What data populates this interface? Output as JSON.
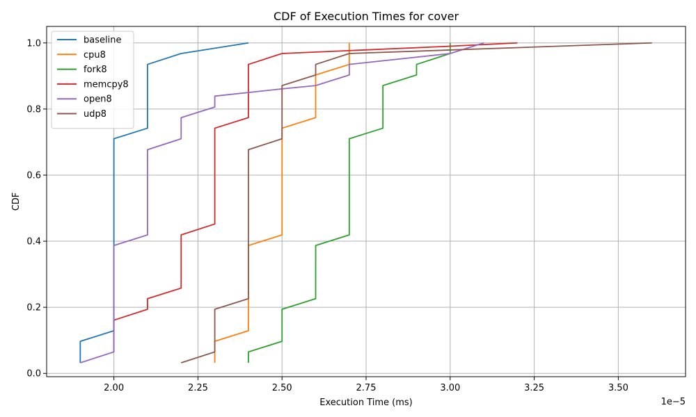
{
  "chart_data": {
    "type": "line",
    "title": "CDF of Execution Times for cover",
    "xlabel": "Execution Time (ms)",
    "ylabel": "CDF",
    "x_scale_label": "1e−5",
    "x_scale_factor": 1e-05,
    "xlim": [
      1.8e-05,
      3.7e-05
    ],
    "ylim": [
      -0.01,
      1.05
    ],
    "x_ticks": [
      2e-05,
      2.25e-05,
      2.5e-05,
      2.75e-05,
      3e-05,
      3.25e-05,
      3.5e-05
    ],
    "x_tick_labels": [
      "2.00",
      "2.25",
      "2.50",
      "2.75",
      "3.00",
      "3.25",
      "3.50"
    ],
    "y_ticks": [
      0.0,
      0.2,
      0.4,
      0.6,
      0.8,
      1.0
    ],
    "y_tick_labels": [
      "0.0",
      "0.2",
      "0.4",
      "0.6",
      "0.8",
      "1.0"
    ],
    "grid": true,
    "legend_position": "top-left",
    "series": [
      {
        "name": "baseline",
        "color": "#1f77b4",
        "x": [
          1.9e-05,
          1.9e-05,
          2e-05,
          2e-05,
          2.1e-05,
          2.1e-05,
          2.2e-05,
          2.4e-05
        ],
        "y": [
          0.032,
          0.097,
          0.129,
          0.71,
          0.742,
          0.935,
          0.968,
          1.0
        ]
      },
      {
        "name": "cpu8",
        "color": "#ff7f0e",
        "x": [
          2.3e-05,
          2.3e-05,
          2.4e-05,
          2.4e-05,
          2.5e-05,
          2.5e-05,
          2.6e-05,
          2.6e-05,
          2.7e-05,
          2.7e-05
        ],
        "y": [
          0.032,
          0.097,
          0.129,
          0.387,
          0.419,
          0.742,
          0.774,
          0.903,
          0.935,
          1.0
        ]
      },
      {
        "name": "fork8",
        "color": "#2ca02c",
        "x": [
          2.4e-05,
          2.4e-05,
          2.5e-05,
          2.5e-05,
          2.6e-05,
          2.6e-05,
          2.7e-05,
          2.7e-05,
          2.8e-05,
          2.8e-05,
          2.9e-05,
          2.9e-05,
          3e-05,
          3e-05
        ],
        "y": [
          0.032,
          0.065,
          0.097,
          0.194,
          0.226,
          0.387,
          0.419,
          0.71,
          0.742,
          0.871,
          0.903,
          0.935,
          0.968,
          1.0
        ]
      },
      {
        "name": "memcpy8",
        "color": "#d62728",
        "x": [
          2e-05,
          2e-05,
          2.1e-05,
          2.1e-05,
          2.2e-05,
          2.2e-05,
          2.3e-05,
          2.3e-05,
          2.4e-05,
          2.4e-05,
          2.5e-05,
          3e-05,
          3.2e-05
        ],
        "y": [
          0.065,
          0.161,
          0.194,
          0.226,
          0.258,
          0.419,
          0.452,
          0.742,
          0.774,
          0.935,
          0.968,
          0.99,
          1.0
        ]
      },
      {
        "name": "open8",
        "color": "#9467bd",
        "x": [
          1.9e-05,
          2e-05,
          2e-05,
          2.1e-05,
          2.1e-05,
          2.2e-05,
          2.2e-05,
          2.3e-05,
          2.3e-05,
          2.5e-05,
          2.6e-05,
          2.7e-05,
          2.7e-05,
          3e-05,
          3.1e-05
        ],
        "y": [
          0.032,
          0.065,
          0.387,
          0.419,
          0.677,
          0.71,
          0.774,
          0.806,
          0.839,
          0.861,
          0.871,
          0.903,
          0.935,
          0.968,
          1.0
        ]
      },
      {
        "name": "udp8",
        "color": "#8c564b",
        "x": [
          2.2e-05,
          2.3e-05,
          2.3e-05,
          2.4e-05,
          2.4e-05,
          2.5e-05,
          2.5e-05,
          2.6e-05,
          2.6e-05,
          2.7e-05,
          3.6e-05
        ],
        "y": [
          0.032,
          0.065,
          0.194,
          0.226,
          0.677,
          0.71,
          0.871,
          0.903,
          0.935,
          0.968,
          1.0
        ]
      }
    ]
  }
}
